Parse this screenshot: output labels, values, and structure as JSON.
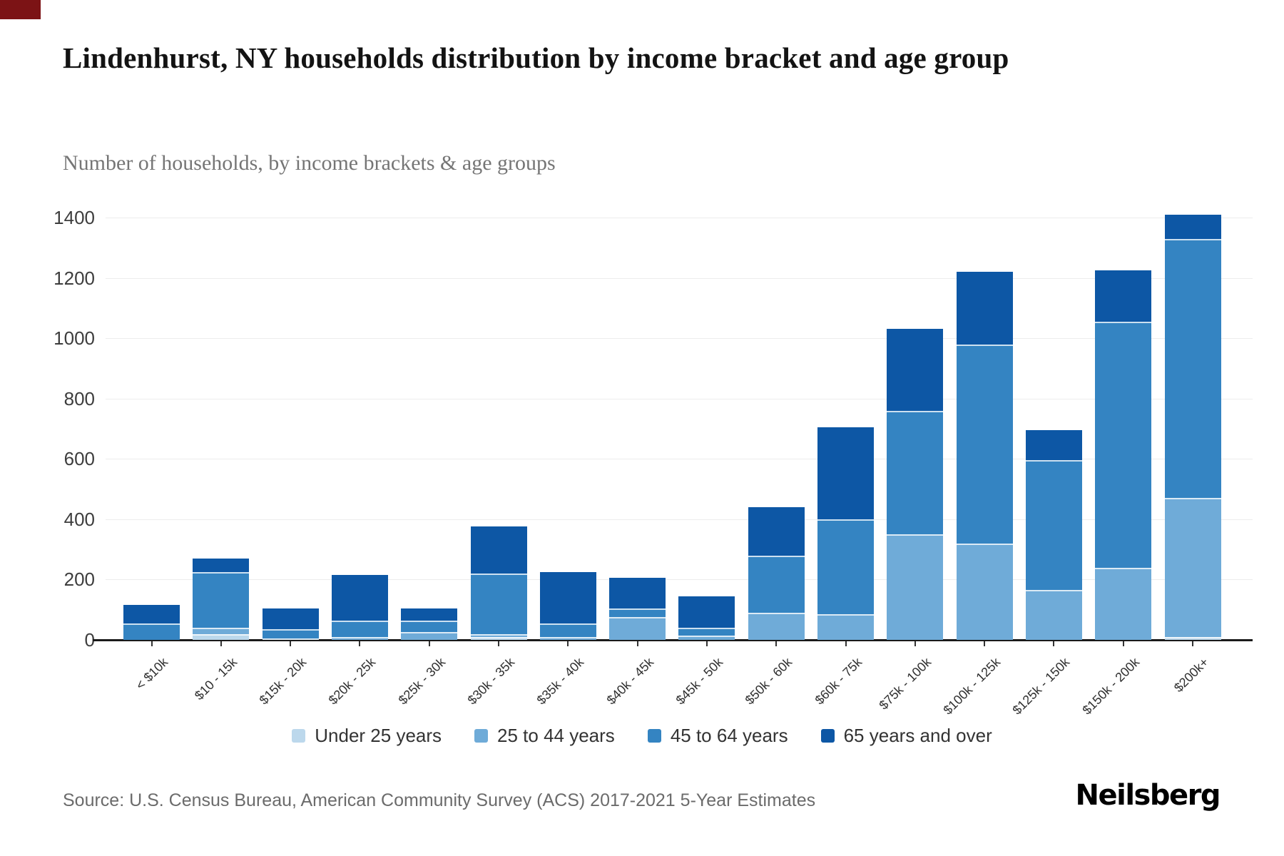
{
  "page": {
    "title": "Lindenhurst, NY households distribution by income bracket and age group",
    "subtitle": "Number of households, by income brackets & age groups",
    "source": "Source: U.S. Census Bureau, American Community Survey (ACS) 2017-2021 5-Year Estimates",
    "brand": "Neilsberg",
    "accent_block_color": "#7c1315"
  },
  "chart_data": {
    "type": "bar",
    "stacked": true,
    "title": "Lindenhurst, NY households distribution by income bracket and age group",
    "subtitle": "Number of households, by income brackets & age groups",
    "xlabel": "",
    "ylabel": "Number of households",
    "ylim": [
      0,
      1400
    ],
    "yticks": [
      0,
      200,
      400,
      600,
      800,
      1000,
      1200,
      1400
    ],
    "grid": "horizontal",
    "legend_position": "bottom",
    "categories": [
      "< $10k",
      "$10 - 15k",
      "$15k - 20k",
      "$20k - 25k",
      "$25k - 30k",
      "$30k - 35k",
      "$35k - 40k",
      "$40k - 45k",
      "$45k - 50k",
      "$50k - 60k",
      "$60k - 75k",
      "$75k - 100k",
      "$100k - 125k",
      "$125k - 150k",
      "$150k - 200k",
      "$200k+"
    ],
    "series": [
      {
        "name": "Under 25 years",
        "color": "#bcd8ec",
        "values": [
          0,
          20,
          0,
          0,
          0,
          10,
          0,
          0,
          0,
          0,
          0,
          0,
          0,
          0,
          0,
          10
        ]
      },
      {
        "name": "25 to 44 years",
        "color": "#6fabd8",
        "values": [
          0,
          20,
          5,
          10,
          25,
          10,
          10,
          75,
          15,
          90,
          85,
          350,
          320,
          165,
          240,
          460
        ]
      },
      {
        "name": "45 to 64 years",
        "color": "#3484c2",
        "values": [
          55,
          185,
          30,
          55,
          40,
          200,
          45,
          30,
          25,
          190,
          315,
          410,
          660,
          430,
          815,
          860
        ]
      },
      {
        "name": "65 years and over",
        "color": "#0d57a5",
        "values": [
          60,
          45,
          68,
          150,
          40,
          155,
          170,
          100,
          105,
          160,
          305,
          270,
          240,
          100,
          170,
          80
        ]
      }
    ],
    "totals": [
      115,
      270,
      103,
      215,
      105,
      375,
      225,
      205,
      145,
      440,
      705,
      1030,
      1220,
      695,
      1225,
      1410
    ]
  }
}
